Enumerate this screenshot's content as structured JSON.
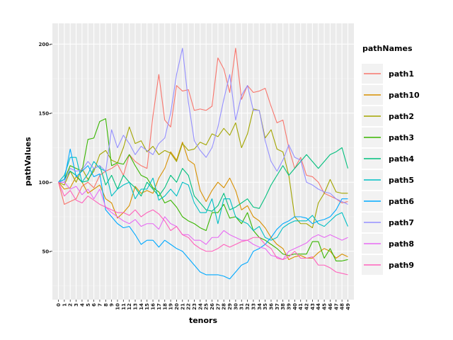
{
  "chart_data": {
    "type": "line",
    "xlabel": "tenors",
    "ylabel": "pathValues",
    "legend_title": "pathNames",
    "legend_position": "right",
    "grid": true,
    "ylim": [
      15,
      215
    ],
    "y_ticks": [
      50,
      100,
      150,
      200
    ],
    "y_tick_labels": [
      "50-",
      "100-",
      "150-",
      "200-"
    ],
    "x": [
      0,
      1,
      2,
      3,
      4,
      5,
      6,
      7,
      8,
      9,
      10,
      11,
      12,
      13,
      14,
      15,
      16,
      17,
      18,
      19,
      20,
      21,
      22,
      23,
      24,
      25,
      26,
      27,
      28,
      29,
      30,
      31,
      32,
      33,
      34,
      35,
      36,
      37,
      38,
      39,
      40,
      41,
      42,
      43,
      44,
      45,
      46,
      47,
      48,
      49
    ],
    "series": [
      {
        "name": "path1",
        "color": "#F8766D",
        "values": [
          100,
          84,
          86,
          88,
          97,
          100,
          96,
          105,
          108,
          110,
          113,
          105,
          120,
          115,
          112,
          110,
          148,
          178,
          145,
          140,
          170,
          166,
          167,
          152,
          153,
          152,
          155,
          190,
          182,
          165,
          197,
          160,
          170,
          165,
          166,
          168,
          155,
          143,
          145,
          125,
          110,
          118,
          105,
          104,
          100,
          92,
          90,
          88,
          85,
          86
        ]
      },
      {
        "name": "path10",
        "color": "#D89000",
        "values": [
          100,
          95,
          96,
          104,
          100,
          92,
          95,
          98,
          88,
          85,
          74,
          78,
          83,
          97,
          92,
          94,
          92,
          103,
          110,
          122,
          116,
          129,
          116,
          113,
          94,
          86,
          94,
          100,
          96,
          103,
          94,
          80,
          83,
          75,
          72,
          67,
          60,
          55,
          52,
          44,
          46,
          47,
          45,
          45,
          49,
          52,
          50,
          45,
          48,
          46
        ]
      },
      {
        "name": "path2",
        "color": "#A3A500",
        "values": [
          100,
          98,
          108,
          100,
          110,
          102,
          108,
          120,
          123,
          116,
          114,
          125,
          140,
          128,
          130,
          122,
          126,
          120,
          123,
          121,
          115,
          128,
          123,
          124,
          129,
          127,
          135,
          133,
          139,
          134,
          143,
          125,
          135,
          153,
          152,
          132,
          138,
          124,
          122,
          105,
          75,
          70,
          70,
          67,
          85,
          92,
          102,
          93,
          92,
          92
        ]
      },
      {
        "name": "path3",
        "color": "#39B600",
        "values": [
          100,
          102,
          112,
          110,
          108,
          131,
          132,
          144,
          146,
          112,
          114,
          113,
          120,
          112,
          105,
          103,
          96,
          93,
          85,
          87,
          82,
          75,
          72,
          70,
          67,
          65,
          78,
          78,
          84,
          74,
          75,
          70,
          78,
          65,
          60,
          58,
          55,
          52,
          48,
          47,
          48,
          48,
          48,
          57,
          57,
          45,
          52,
          43,
          43,
          44
        ]
      },
      {
        "name": "path4",
        "color": "#00BF7D",
        "values": [
          100,
          102,
          108,
          105,
          100,
          101,
          110,
          112,
          98,
          105,
          95,
          105,
          100,
          96,
          90,
          100,
          95,
          90,
          96,
          105,
          100,
          110,
          105,
          90,
          85,
          80,
          79,
          83,
          92,
          80,
          82,
          85,
          88,
          82,
          81,
          89,
          98,
          105,
          112,
          105,
          110,
          115,
          120,
          115,
          110,
          115,
          120,
          122,
          125,
          110
        ]
      },
      {
        "name": "path5",
        "color": "#00BFC4",
        "values": [
          100,
          105,
          118,
          118,
          100,
          106,
          115,
          110,
          108,
          90,
          95,
          98,
          100,
          88,
          95,
          95,
          103,
          87,
          90,
          95,
          90,
          100,
          98,
          85,
          78,
          78,
          88,
          70,
          88,
          88,
          75,
          72,
          70,
          65,
          68,
          60,
          58,
          60,
          67,
          70,
          72,
          72,
          72,
          76,
          70,
          68,
          72,
          76,
          78,
          68
        ]
      },
      {
        "name": "path6",
        "color": "#00A9FF",
        "values": [
          100,
          102,
          124,
          104,
          108,
          112,
          104,
          106,
          80,
          75,
          70,
          67,
          68,
          62,
          55,
          58,
          58,
          53,
          58,
          55,
          52,
          50,
          45,
          40,
          35,
          33,
          33,
          33,
          32,
          30,
          35,
          40,
          42,
          50,
          52,
          55,
          60,
          66,
          70,
          72,
          75,
          75,
          74,
          70,
          72,
          73,
          75,
          80,
          88,
          88
        ]
      },
      {
        "name": "path7",
        "color": "#9590FF",
        "values": [
          100,
          100,
          110,
          108,
          109,
          115,
          110,
          112,
          108,
          138,
          125,
          134,
          128,
          120,
          126,
          123,
          120,
          128,
          132,
          150,
          178,
          197,
          158,
          130,
          123,
          118,
          125,
          140,
          160,
          178,
          145,
          163,
          170,
          152,
          152,
          130,
          115,
          108,
          116,
          127,
          118,
          116,
          100,
          98,
          95,
          93,
          92,
          88,
          86,
          84
        ]
      },
      {
        "name": "path8",
        "color": "#E76BF3",
        "values": [
          100,
          100,
          95,
          97,
          91,
          95,
          88,
          95,
          82,
          78,
          75,
          72,
          70,
          73,
          68,
          70,
          70,
          66,
          75,
          70,
          68,
          62,
          62,
          58,
          58,
          55,
          60,
          60,
          65,
          62,
          60,
          58,
          58,
          55,
          53,
          52,
          47,
          46,
          44,
          50,
          52,
          54,
          56,
          60,
          62,
          60,
          62,
          60,
          58,
          60
        ]
      },
      {
        "name": "path9",
        "color": "#FF62BC",
        "values": [
          100,
          90,
          94,
          87,
          85,
          90,
          87,
          84,
          82,
          80,
          78,
          78,
          76,
          80,
          75,
          78,
          80,
          77,
          72,
          65,
          68,
          62,
          60,
          55,
          52,
          50,
          50,
          52,
          55,
          53,
          55,
          57,
          58,
          60,
          60,
          55,
          52,
          45,
          44,
          46,
          50,
          45,
          45,
          46,
          40,
          40,
          38,
          35,
          34,
          33
        ]
      }
    ]
  }
}
